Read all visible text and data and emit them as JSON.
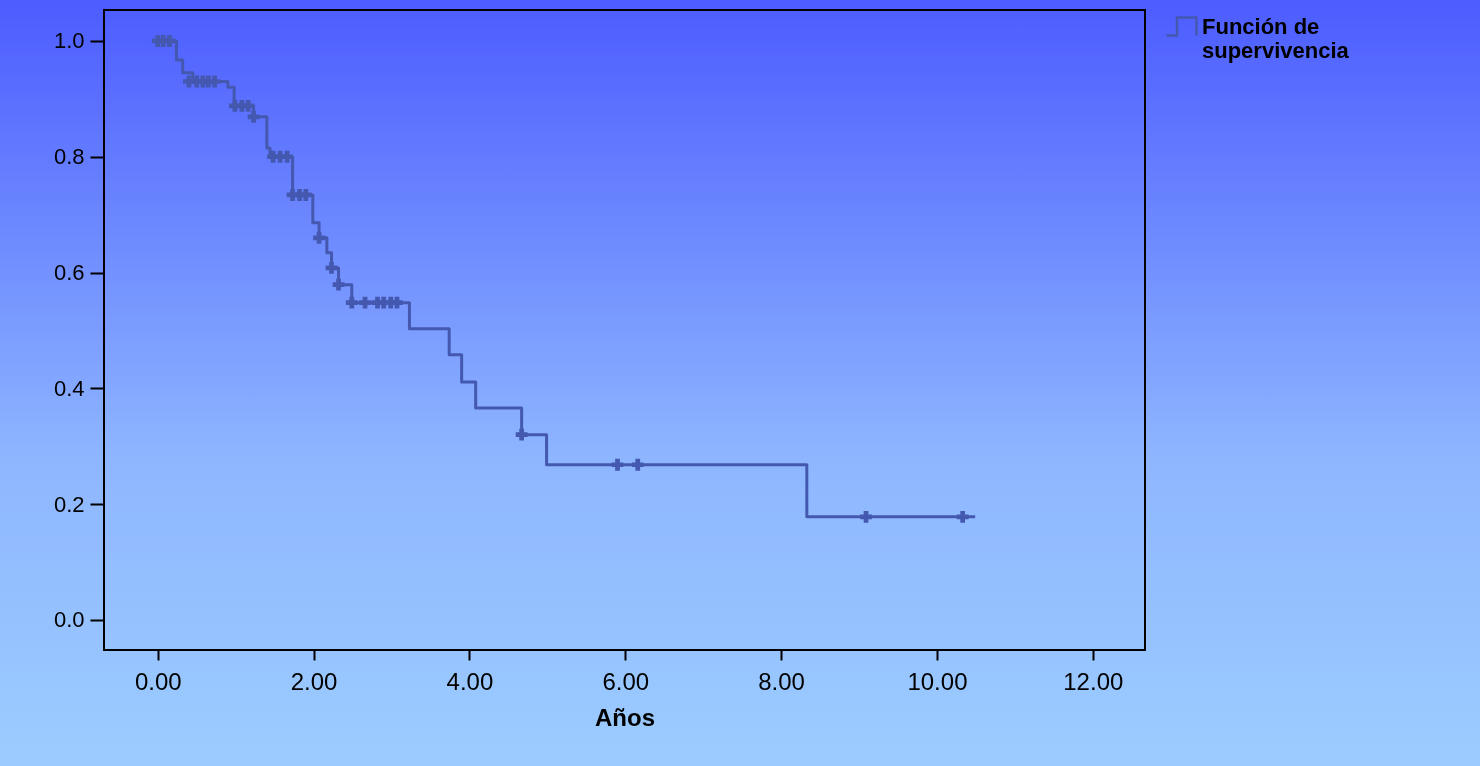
{
  "chart_data": {
    "type": "step",
    "xlabel": "Años",
    "series": [
      {
        "name": "Función de supervivencia",
        "color": "#4458b0",
        "x": [
          0,
          0.24,
          0.32,
          0.45,
          0.9,
          0.98,
          1.23,
          1.4,
          1.44,
          1.73,
          1.99,
          2.07,
          2.17,
          2.23,
          2.32,
          2.49,
          3.23,
          3.74,
          3.9,
          4.08,
          4.67,
          4.99,
          8.33,
          10.49
        ],
        "values": [
          1.0,
          0.967,
          0.945,
          0.93,
          0.92,
          0.888,
          0.869,
          0.815,
          0.8,
          0.734,
          0.686,
          0.66,
          0.634,
          0.608,
          0.579,
          0.548,
          0.503,
          0.458,
          0.411,
          0.366,
          0.32,
          0.268,
          0.178,
          0.178
        ]
      },
      {
        "type": "scatter",
        "color": "#4458b0",
        "marker": "cross",
        "x": [
          0.0,
          0.07,
          0.15,
          0.4,
          0.5,
          0.58,
          0.65,
          0.73,
          0.99,
          1.08,
          1.16,
          1.23,
          1.48,
          1.57,
          1.66,
          1.73,
          1.82,
          1.9,
          2.07,
          2.23,
          2.32,
          2.49,
          2.66,
          2.82,
          2.9,
          2.99,
          3.07,
          4.67,
          5.9,
          6.16,
          9.09,
          10.33
        ],
        "values": [
          1.0,
          1.0,
          1.0,
          0.93,
          0.93,
          0.93,
          0.93,
          0.93,
          0.888,
          0.888,
          0.888,
          0.869,
          0.8,
          0.8,
          0.8,
          0.734,
          0.734,
          0.734,
          0.66,
          0.608,
          0.579,
          0.548,
          0.548,
          0.548,
          0.548,
          0.548,
          0.548,
          0.32,
          0.268,
          0.268,
          0.178,
          0.178
        ]
      }
    ],
    "xlim": [
      -0.69,
      12.67
    ],
    "xticks": [
      {
        "value": 0,
        "label": "0.00"
      },
      {
        "value": 2,
        "label": "2.00"
      },
      {
        "value": 4,
        "label": "4.00"
      },
      {
        "value": 6,
        "label": "6.00"
      },
      {
        "value": 8,
        "label": "8.00"
      },
      {
        "value": 10,
        "label": "10.00"
      },
      {
        "value": 12,
        "label": "12.00"
      }
    ],
    "ylim": [
      -0.052,
      1.0535
    ],
    "yticks": [
      {
        "value": 0,
        "label": "0.0"
      },
      0.2,
      0.4,
      0.6,
      0.8,
      {
        "value": 1,
        "label": "1.0"
      }
    ],
    "legend": "top right",
    "grid": false
  }
}
